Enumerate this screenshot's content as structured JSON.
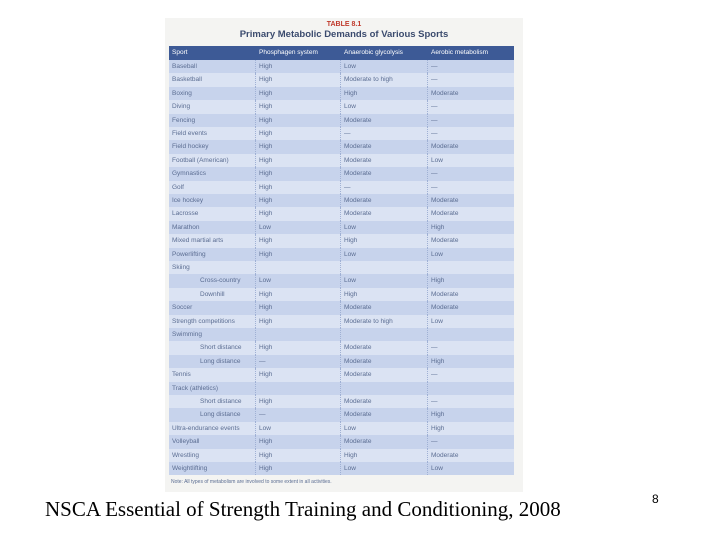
{
  "table": {
    "label": "TABLE 8.1",
    "title": "Primary Metabolic Demands of Various Sports",
    "header": [
      "Sport",
      "Phosphagen system",
      "Anaerobic glycolysis",
      "Aerobic metabolism"
    ],
    "rows": [
      [
        "Baseball",
        "High",
        "Low",
        "—"
      ],
      [
        "Basketball",
        "High",
        "Moderate to high",
        "—"
      ],
      [
        "Boxing",
        "High",
        "High",
        "Moderate"
      ],
      [
        "Diving",
        "High",
        "Low",
        "—"
      ],
      [
        "Fencing",
        "High",
        "Moderate",
        "—"
      ],
      [
        "Field events",
        "High",
        "—",
        "—"
      ],
      [
        "Field hockey",
        "High",
        "Moderate",
        "Moderate"
      ],
      [
        "Football (American)",
        "High",
        "Moderate",
        "Low"
      ],
      [
        "Gymnastics",
        "High",
        "Moderate",
        "—"
      ],
      [
        "Golf",
        "High",
        "—",
        "—"
      ],
      [
        "Ice hockey",
        "High",
        "Moderate",
        "Moderate"
      ],
      [
        "Lacrosse",
        "High",
        "Moderate",
        "Moderate"
      ],
      [
        "Marathon",
        "Low",
        "Low",
        "High"
      ],
      [
        "Mixed martial arts",
        "High",
        "High",
        "Moderate"
      ],
      [
        "Powerlifting",
        "High",
        "Low",
        "Low"
      ],
      {
        "group": "Skiing",
        "rows": [
          [
            "Cross-country",
            "Low",
            "Low",
            "High"
          ],
          [
            "Downhill",
            "High",
            "High",
            "Moderate"
          ]
        ]
      },
      [
        "Soccer",
        "High",
        "Moderate",
        "Moderate"
      ],
      [
        "Strength competitions",
        "High",
        "Moderate to high",
        "Low"
      ],
      {
        "group": "Swimming",
        "rows": [
          [
            "Short distance",
            "High",
            "Moderate",
            "—"
          ],
          [
            "Long distance",
            "—",
            "Moderate",
            "High"
          ]
        ]
      },
      [
        "Tennis",
        "High",
        "Moderate",
        "—"
      ],
      {
        "group": "Track (athletics)",
        "rows": [
          [
            "Short distance",
            "High",
            "Moderate",
            "—"
          ],
          [
            "Long distance",
            "—",
            "Moderate",
            "High"
          ]
        ]
      },
      [
        "Ultra-endurance events",
        "Low",
        "Low",
        "High"
      ],
      [
        "Volleyball",
        "High",
        "Moderate",
        "—"
      ],
      [
        "Wrestling",
        "High",
        "High",
        "Moderate"
      ],
      [
        "Weightlifting",
        "High",
        "Low",
        "Low"
      ]
    ],
    "note": "Note: All types of metabolism are involved to some extent in all activities."
  },
  "caption": "NSCA Essential of Strength Training and Conditioning, 2008",
  "page_number": "8"
}
